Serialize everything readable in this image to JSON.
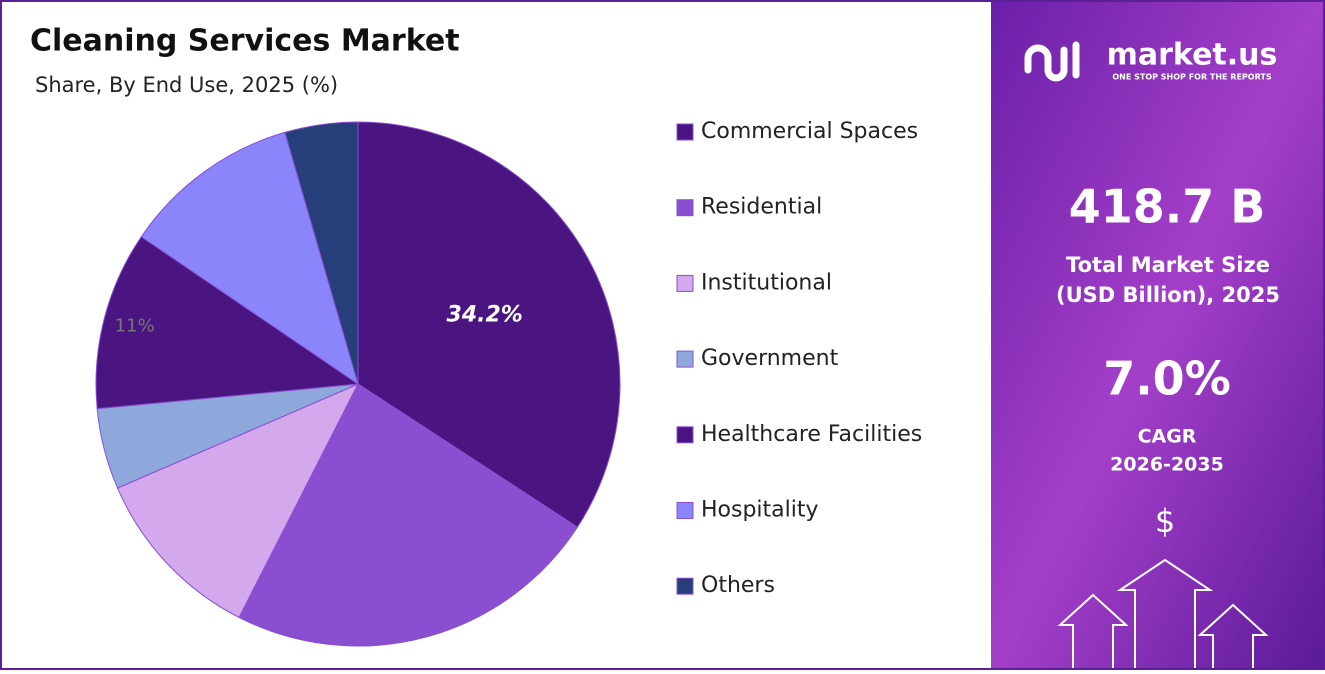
{
  "chart_data": {
    "type": "pie",
    "title": "Cleaning Services Market",
    "subtitle": "Share, By  End Use, 2025 (%)",
    "categories": [
      "Commercial Spaces",
      "Residential",
      "Institutional",
      "Government",
      "Healthcare Facilities",
      "Hospitality",
      "Others"
    ],
    "values": [
      34.2,
      23.3,
      11,
      5,
      11,
      11,
      4.5
    ],
    "value_labels": [
      "34.2%",
      null,
      null,
      null,
      "11%",
      null,
      null
    ],
    "colors": [
      "#4a1580",
      "#8a4fd0",
      "#d3a8ec",
      "#8fa8dc",
      "#4a1580",
      "#8a85fb",
      "#263f7a"
    ],
    "legend": "right"
  },
  "panel": {
    "brand": "market.us",
    "tagline": "ONE STOP SHOP FOR THE REPORTS",
    "market_size": "418.7 B",
    "market_size_label_1": "Total Market Size",
    "market_size_label_2": "(USD Billion), 2025",
    "cagr": "7.0%",
    "cagr_label": "CAGR",
    "cagr_period": "2026-2035",
    "currency": "$"
  }
}
